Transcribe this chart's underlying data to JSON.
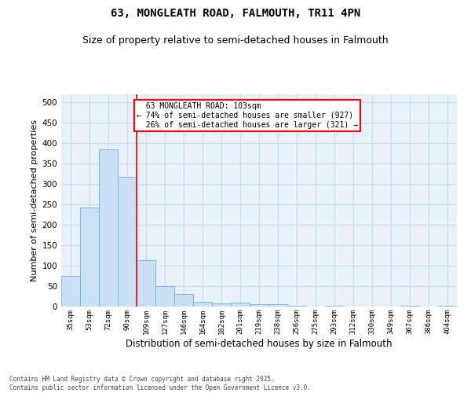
{
  "title": "63, MONGLEATH ROAD, FALMOUTH, TR11 4PN",
  "subtitle": "Size of property relative to semi-detached houses in Falmouth",
  "xlabel": "Distribution of semi-detached houses by size in Falmouth",
  "ylabel": "Number of semi-detached properties",
  "categories": [
    "35sqm",
    "53sqm",
    "72sqm",
    "90sqm",
    "109sqm",
    "127sqm",
    "146sqm",
    "164sqm",
    "182sqm",
    "201sqm",
    "219sqm",
    "238sqm",
    "256sqm",
    "275sqm",
    "293sqm",
    "312sqm",
    "330sqm",
    "349sqm",
    "367sqm",
    "386sqm",
    "404sqm"
  ],
  "values": [
    75,
    242,
    385,
    317,
    113,
    50,
    30,
    12,
    7,
    9,
    6,
    5,
    2,
    0,
    1,
    0,
    0,
    0,
    1,
    0,
    1
  ],
  "bar_color": "#c9dff2",
  "bar_edge_color": "#7aafd4",
  "property_line_x": 3.5,
  "property_label": "63 MONGLEATH ROAD: 103sqm",
  "pct_smaller": 74,
  "count_smaller": 927,
  "pct_larger": 26,
  "count_larger": 321,
  "vline_color": "red",
  "annotation_box_edge_color": "red",
  "grid_color": "#c8d8e8",
  "bg_color": "#e8f0f8",
  "footer_line1": "Contains HM Land Registry data © Crown copyright and database right 2025.",
  "footer_line2": "Contains public sector information licensed under the Open Government Licence v3.0.",
  "ylim": [
    0,
    520
  ],
  "title_fontsize": 10,
  "subtitle_fontsize": 9,
  "xlabel_fontsize": 8.5,
  "ylabel_fontsize": 8
}
